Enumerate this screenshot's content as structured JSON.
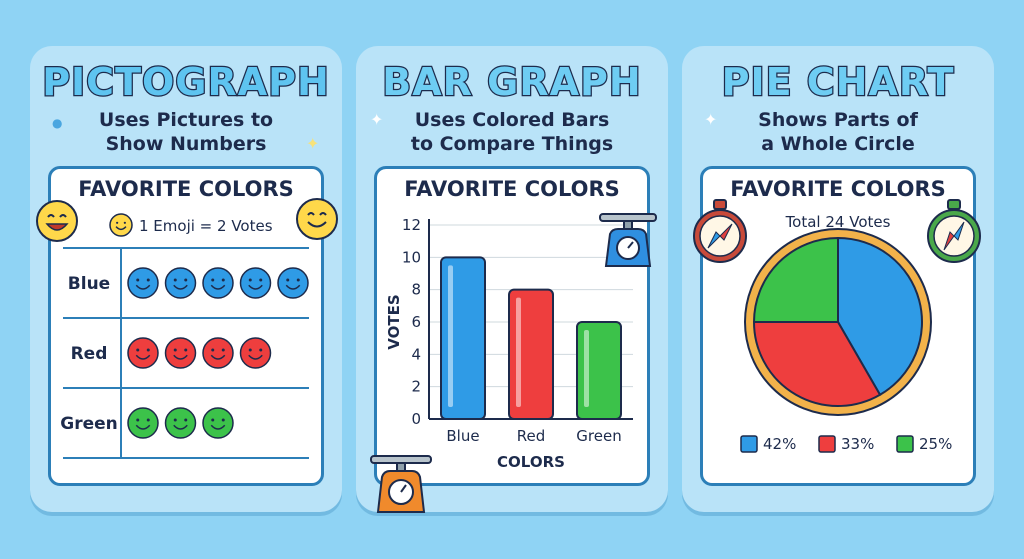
{
  "cards": [
    {
      "title": "PICTOGRAPH",
      "subtitle_line1": "Uses Pictures to",
      "subtitle_line2": "Show Numbers",
      "panel_title": "FAVORITE COLORS",
      "key_text": "1 Emoji = 2 Votes",
      "icon": "smiley-emoji-icon"
    },
    {
      "title": "BAR GRAPH",
      "subtitle_line1": "Uses Colored Bars",
      "subtitle_line2": "to Compare Things",
      "panel_title": "FAVORITE COLORS",
      "icon": "scale-icon"
    },
    {
      "title": "PIE CHART",
      "subtitle_line1": "Shows Parts of",
      "subtitle_line2": "a Whole Circle",
      "panel_title": "FAVORITE COLORS",
      "panel_subtitle": "Total 24 Votes",
      "icon": "compass-icon"
    }
  ],
  "colors": {
    "blue": "#2f9be6",
    "red": "#ee3e3e",
    "green": "#3cc24a",
    "outline": "#1d2b4c"
  },
  "chart_data": [
    {
      "type": "table",
      "title": "FAVORITE COLORS",
      "key": "1 Emoji = 2 Votes",
      "categories": [
        "Blue",
        "Red",
        "Green"
      ],
      "emoji_counts": [
        5,
        4,
        3
      ],
      "emoji_colors": [
        "#2f9be6",
        "#ee3e3e",
        "#3cc24a"
      ]
    },
    {
      "type": "bar",
      "title": "FAVORITE COLORS",
      "categories": [
        "Blue",
        "Red",
        "Green"
      ],
      "values": [
        10,
        8,
        6
      ],
      "bar_colors": [
        "#2f9be6",
        "#ee3e3e",
        "#3cc24a"
      ],
      "xlabel": "COLORS",
      "ylabel": "VOTES",
      "ylim": [
        0,
        12
      ],
      "yticks": [
        0,
        2,
        4,
        6,
        8,
        10,
        12
      ],
      "grid": true
    },
    {
      "type": "pie",
      "title": "FAVORITE COLORS",
      "subtitle": "Total 24 Votes",
      "categories": [
        "Blue",
        "Red",
        "Green"
      ],
      "values": [
        10,
        8,
        6
      ],
      "slice_colors": [
        "#2f9be6",
        "#ee3e3e",
        "#3cc24a"
      ],
      "legend": [
        "42%",
        "33%",
        "25%"
      ],
      "legend_position": "bottom"
    }
  ]
}
